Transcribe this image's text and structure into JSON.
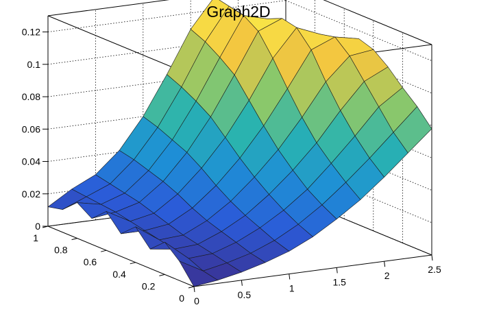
{
  "chart_data": {
    "type": "surface",
    "title": "Graph2D",
    "xlabel": "",
    "ylabel": "",
    "zlabel": "",
    "xlim": [
      0,
      2.5
    ],
    "ylim": [
      0,
      1
    ],
    "zlim": [
      0,
      0.13
    ],
    "x_ticks": [
      "0",
      "0.5",
      "1",
      "1.5",
      "2",
      "2.5"
    ],
    "y_ticks": [
      "0",
      "0.2",
      "0.4",
      "0.6",
      "0.8",
      "1"
    ],
    "z_ticks": [
      "0",
      "0.02",
      "0.04",
      "0.06",
      "0.08",
      "0.1",
      "0.12"
    ],
    "x_grid_values": [
      0,
      0.25,
      0.5,
      0.75,
      1.0,
      1.25,
      1.5,
      1.75,
      2.0,
      2.25,
      2.5
    ],
    "y_grid_values": [
      0,
      0.1,
      0.2,
      0.3,
      0.4,
      0.5,
      0.6,
      0.7,
      0.8,
      0.9,
      1.0
    ],
    "z_grid": [
      [
        0.0,
        0.002,
        0.005,
        0.009,
        0.014,
        0.021,
        0.03,
        0.04,
        0.052,
        0.065,
        0.078
      ],
      [
        0.012,
        0.004,
        0.007,
        0.011,
        0.017,
        0.025,
        0.035,
        0.047,
        0.06,
        0.074,
        0.088
      ],
      [
        0.02,
        0.008,
        0.009,
        0.014,
        0.021,
        0.03,
        0.041,
        0.055,
        0.07,
        0.086,
        0.096
      ],
      [
        0.012,
        0.01,
        0.011,
        0.017,
        0.025,
        0.036,
        0.049,
        0.064,
        0.082,
        0.098,
        0.105
      ],
      [
        0.022,
        0.012,
        0.013,
        0.02,
        0.03,
        0.043,
        0.058,
        0.076,
        0.096,
        0.11,
        0.112
      ],
      [
        0.014,
        0.014,
        0.016,
        0.024,
        0.036,
        0.051,
        0.069,
        0.09,
        0.112,
        0.118,
        0.115
      ],
      [
        0.024,
        0.016,
        0.019,
        0.029,
        0.043,
        0.06,
        0.081,
        0.105,
        0.122,
        0.116,
        0.11
      ],
      [
        0.016,
        0.018,
        0.022,
        0.033,
        0.049,
        0.069,
        0.093,
        0.118,
        0.124,
        0.112,
        0.104
      ],
      [
        0.022,
        0.019,
        0.024,
        0.036,
        0.053,
        0.075,
        0.1,
        0.124,
        0.12,
        0.106,
        0.098
      ],
      [
        0.014,
        0.02,
        0.026,
        0.039,
        0.057,
        0.08,
        0.106,
        0.126,
        0.115,
        0.1,
        0.094
      ],
      [
        0.012,
        0.021,
        0.028,
        0.041,
        0.06,
        0.084,
        0.11,
        0.128,
        0.112,
        0.096,
        0.09
      ]
    ],
    "colorscale": [
      "#3b2f8f",
      "#2b5bd8",
      "#1e8fd6",
      "#29b3b0",
      "#8cc86a",
      "#f3c640",
      "#fcf54a"
    ],
    "grid": true
  }
}
